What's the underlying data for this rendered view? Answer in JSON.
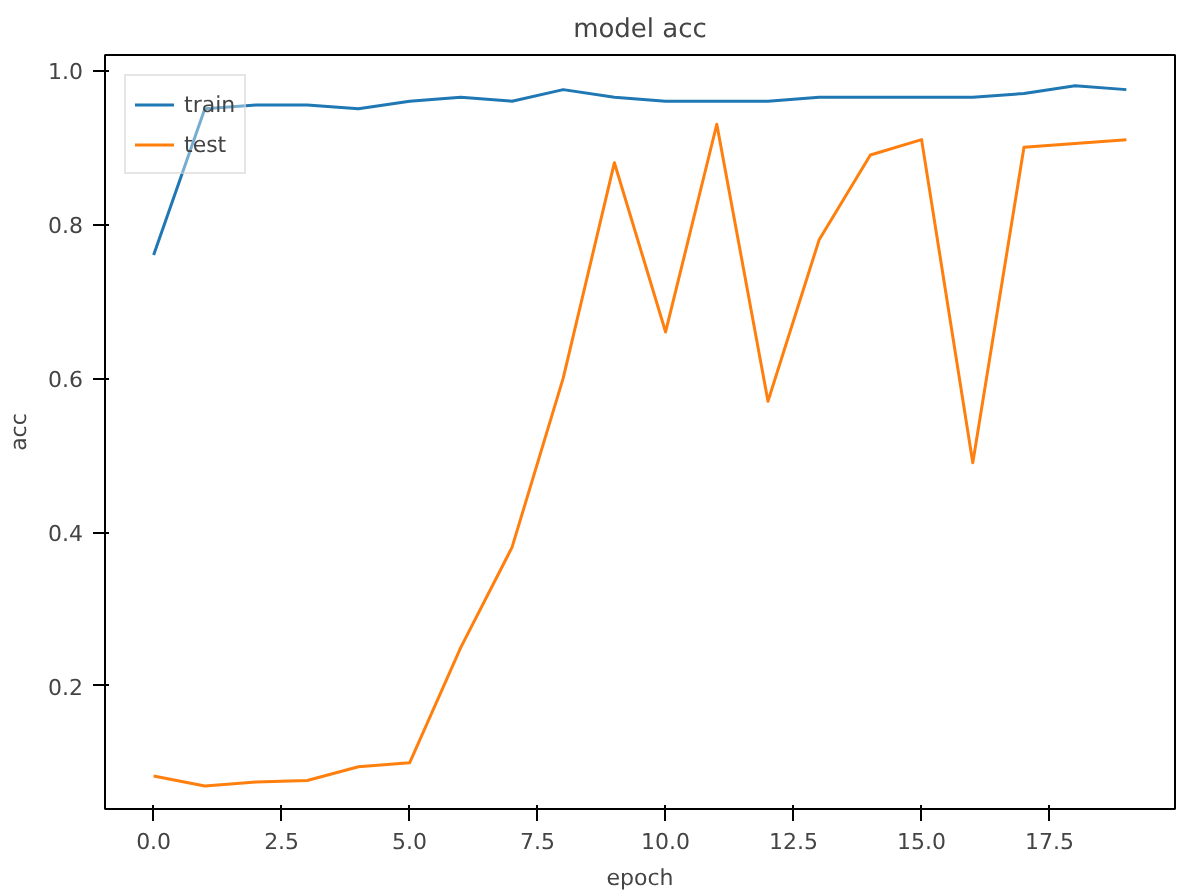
{
  "chart_data": {
    "type": "line",
    "title": "model acc",
    "xlabel": "epoch",
    "ylabel": "acc",
    "x": [
      0,
      1,
      2,
      3,
      4,
      5,
      6,
      7,
      8,
      9,
      10,
      11,
      12,
      13,
      14,
      15,
      16,
      17,
      18,
      19
    ],
    "series": [
      {
        "name": "train",
        "color": "#1f77b4",
        "values": [
          0.76,
          0.95,
          0.955,
          0.955,
          0.95,
          0.96,
          0.965,
          0.96,
          0.975,
          0.965,
          0.96,
          0.96,
          0.96,
          0.965,
          0.965,
          0.965,
          0.965,
          0.97,
          0.98,
          0.975
        ]
      },
      {
        "name": "test",
        "color": "#ff7f0e",
        "values": [
          0.083,
          0.07,
          0.075,
          0.077,
          0.095,
          0.1,
          0.25,
          0.38,
          0.6,
          0.88,
          0.66,
          0.93,
          0.57,
          0.78,
          0.89,
          0.91,
          0.49,
          0.9,
          0.905,
          0.91
        ]
      }
    ],
    "xlim": [
      -0.95,
      19.95
    ],
    "ylim": [
      0.04,
      1.02
    ],
    "xticks": [
      {
        "value": 0,
        "label": "0.0"
      },
      2.5,
      {
        "value": 5,
        "label": "5.0"
      },
      7.5,
      {
        "value": 10,
        "label": "10.0"
      },
      12.5,
      {
        "value": 15,
        "label": "15.0"
      },
      17.5
    ],
    "yticks": [
      0.2,
      0.4,
      0.6,
      0.8,
      {
        "value": 1,
        "label": "1.0"
      }
    ],
    "legend": "top left",
    "grid": false,
    "marker": "none",
    "line_style": "solid"
  }
}
